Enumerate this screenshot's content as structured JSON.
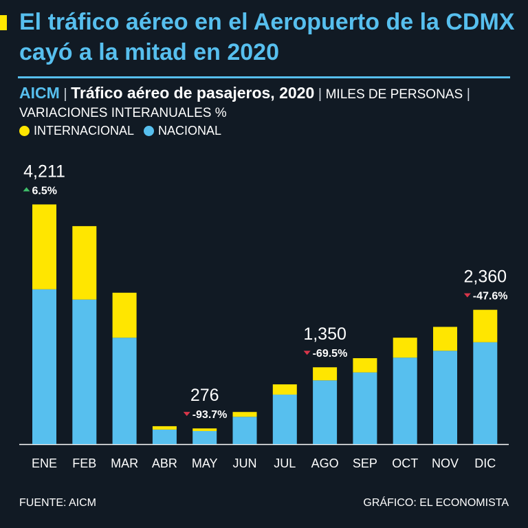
{
  "header": {
    "title": "El tráfico aéreo en el Aeropuerto de la CDMX cayó a la mitad en 2020",
    "source_tag": "AICM",
    "separator": "|",
    "main_subtitle": "Tráfico aéreo de pasajeros, 2020",
    "units": "MILES DE PERSONAS",
    "variations": "VARIACIONES INTERANUALES %"
  },
  "legend": {
    "international": "INTERNACIONAL",
    "national": "NACIONAL"
  },
  "colors": {
    "background": "#111a24",
    "international": "#ffe600",
    "national": "#57bfee",
    "up": "#3fbf6a",
    "down": "#d9364a"
  },
  "chart_data": {
    "type": "bar",
    "stacked": true,
    "title": "Tráfico aéreo de pasajeros, 2020",
    "ylabel": "MILES DE PERSONAS",
    "ylim": [
      0,
      4300
    ],
    "categories": [
      "ENE",
      "FEB",
      "MAR",
      "ABR",
      "MAY",
      "JUN",
      "JUL",
      "AGO",
      "SEP",
      "OCT",
      "NOV",
      "DIC"
    ],
    "series": [
      {
        "name": "NACIONAL",
        "values": [
          2720,
          2540,
          1870,
          255,
          230,
          480,
          870,
          1120,
          1260,
          1520,
          1640,
          1790
        ]
      },
      {
        "name": "INTERNACIONAL",
        "values": [
          1491,
          1290,
          790,
          60,
          46,
          85,
          180,
          230,
          250,
          350,
          420,
          570
        ]
      }
    ],
    "annotations": [
      {
        "index": 0,
        "total": "4,211",
        "change": "6.5%",
        "direction": "up"
      },
      {
        "index": 4,
        "total": "276",
        "change": "-93.7%",
        "direction": "down"
      },
      {
        "index": 7,
        "total": "1,350",
        "change": "-69.5%",
        "direction": "down"
      },
      {
        "index": 11,
        "total": "2,360",
        "change": "-47.6%",
        "direction": "down"
      }
    ]
  },
  "footer": {
    "source": "FUENTE: AICM",
    "credit": "GRÁFICO: EL ECONOMISTA"
  }
}
